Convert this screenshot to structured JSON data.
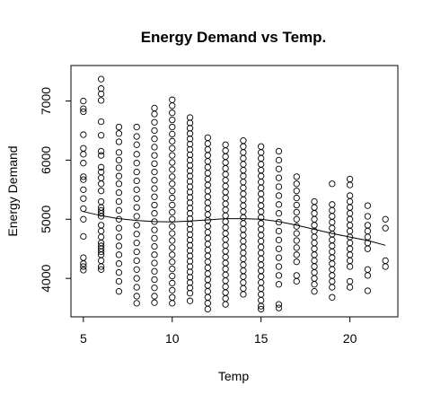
{
  "chart_data": {
    "type": "scatter",
    "title": "Energy Demand vs Temp.",
    "xlabel": "Temp",
    "ylabel": "Energy Demand",
    "xlim": [
      4.3,
      22.7
    ],
    "ylim": [
      3350,
      7600
    ],
    "xticks": [
      5,
      10,
      15,
      20
    ],
    "yticks": [
      4000,
      5000,
      6000,
      7000
    ],
    "grid": false,
    "legend": "none",
    "marker": "open-circle",
    "trend_line": {
      "x": [
        5,
        6,
        7,
        8,
        9,
        10,
        11,
        12,
        13,
        14,
        15,
        16,
        17,
        18,
        19,
        20,
        21,
        22
      ],
      "y": [
        5130,
        5060,
        5010,
        4980,
        4960,
        4955,
        4970,
        4990,
        5010,
        5010,
        5000,
        4960,
        4900,
        4830,
        4760,
        4700,
        4640,
        4560
      ]
    },
    "columns": [
      {
        "x": 5,
        "values": [
          7000,
          6870,
          6820,
          6430,
          6200,
          6100,
          5950,
          5720,
          5670,
          5500,
          5350,
          5180,
          5000,
          4710,
          4350,
          4250,
          4200,
          4140
        ]
      },
      {
        "x": 6,
        "values": [
          7370,
          7210,
          7120,
          7010,
          6650,
          6420,
          6150,
          6080,
          5880,
          5800,
          5700,
          5600,
          5480,
          5300,
          5200,
          5150,
          5100,
          5050,
          4900,
          4800,
          4700,
          4600,
          4550,
          4500,
          4450,
          4400,
          4300,
          4200,
          4150
        ]
      },
      {
        "x": 7,
        "values": [
          6560,
          6450,
          6310,
          6130,
          6000,
          5870,
          5730,
          5600,
          5450,
          5300,
          5150,
          5000,
          4850,
          4700,
          4550,
          4400,
          4250,
          4100,
          3950,
          3780
        ]
      },
      {
        "x": 8,
        "values": [
          6560,
          6400,
          6260,
          6100,
          5950,
          5800,
          5650,
          5500,
          5350,
          5200,
          5050,
          4900,
          4750,
          4600,
          4450,
          4300,
          4150,
          4000,
          3850,
          3700,
          3580
        ]
      },
      {
        "x": 9,
        "values": [
          6880,
          6780,
          6640,
          6500,
          6360,
          6220,
          6080,
          5940,
          5800,
          5660,
          5520,
          5380,
          5240,
          5100,
          4960,
          4820,
          4680,
          4540,
          4400,
          4260,
          4120,
          3980,
          3840,
          3700,
          3590
        ]
      },
      {
        "x": 10,
        "values": [
          7020,
          6920,
          6800,
          6680,
          6560,
          6440,
          6320,
          6200,
          6080,
          5960,
          5840,
          5720,
          5600,
          5480,
          5360,
          5240,
          5120,
          5000,
          4880,
          4760,
          4640,
          4520,
          4400,
          4280,
          4160,
          4040,
          3920,
          3800,
          3680,
          3580
        ]
      },
      {
        "x": 11,
        "values": [
          6720,
          6630,
          6540,
          6450,
          6360,
          6270,
          6180,
          6090,
          6000,
          5910,
          5820,
          5730,
          5640,
          5550,
          5460,
          5370,
          5280,
          5190,
          5100,
          5010,
          4920,
          4830,
          4740,
          4650,
          4560,
          4470,
          4380,
          4290,
          4200,
          4110,
          4020,
          3930,
          3840,
          3750,
          3620
        ]
      },
      {
        "x": 12,
        "values": [
          6380,
          6280,
          6180,
          6080,
          5980,
          5880,
          5780,
          5680,
          5580,
          5480,
          5380,
          5280,
          5180,
          5080,
          4980,
          4880,
          4780,
          4680,
          4580,
          4480,
          4380,
          4280,
          4180,
          4080,
          3980,
          3880,
          3780,
          3680,
          3580,
          3480
        ]
      },
      {
        "x": 13,
        "values": [
          6260,
          6160,
          6060,
          5960,
          5860,
          5760,
          5660,
          5560,
          5460,
          5360,
          5260,
          5160,
          5060,
          4960,
          4860,
          4760,
          4660,
          4560,
          4460,
          4360,
          4260,
          4160,
          4060,
          3960,
          3860,
          3760,
          3660,
          3560
        ]
      },
      {
        "x": 14,
        "values": [
          6330,
          6230,
          6130,
          6030,
          5930,
          5830,
          5730,
          5630,
          5530,
          5430,
          5330,
          5230,
          5130,
          5030,
          4930,
          4830,
          4730,
          4630,
          4530,
          4430,
          4330,
          4230,
          4130,
          4030,
          3930,
          3830,
          3730
        ]
      },
      {
        "x": 15,
        "values": [
          6230,
          6130,
          6030,
          5930,
          5830,
          5730,
          5630,
          5530,
          5430,
          5330,
          5230,
          5130,
          5030,
          4930,
          4830,
          4730,
          4630,
          4530,
          4430,
          4330,
          4230,
          4130,
          4030,
          3930,
          3830,
          3730,
          3630,
          3530,
          3480
        ]
      },
      {
        "x": 16,
        "values": [
          6150,
          6000,
          5850,
          5700,
          5550,
          5400,
          5250,
          5100,
          4950,
          4800,
          4650,
          4500,
          4350,
          4200,
          4050,
          3900,
          3560,
          3500
        ]
      },
      {
        "x": 17,
        "values": [
          5720,
          5600,
          5480,
          5360,
          5240,
          5120,
          5000,
          4880,
          4760,
          4640,
          4520,
          4400,
          4280,
          4050,
          3950
        ]
      },
      {
        "x": 18,
        "values": [
          5300,
          5200,
          5100,
          5000,
          4900,
          4800,
          4700,
          4600,
          4500,
          4400,
          4300,
          4200,
          4100,
          4000,
          3900,
          3780
        ]
      },
      {
        "x": 19,
        "values": [
          5600,
          5250,
          5150,
          5050,
          4950,
          4850,
          4750,
          4650,
          4550,
          4450,
          4350,
          4250,
          4150,
          4050,
          3950,
          3850,
          3680
        ]
      },
      {
        "x": 20,
        "values": [
          5680,
          5580,
          5400,
          5300,
          5200,
          5100,
          5000,
          4900,
          4800,
          4700,
          4600,
          4500,
          4400,
          4300,
          4200,
          3950,
          3850
        ]
      },
      {
        "x": 21,
        "values": [
          5230,
          5050,
          4900,
          4800,
          4700,
          4600,
          4500,
          4150,
          4050,
          3790
        ]
      },
      {
        "x": 22,
        "values": [
          5000,
          4850,
          4300,
          4200
        ]
      }
    ]
  }
}
